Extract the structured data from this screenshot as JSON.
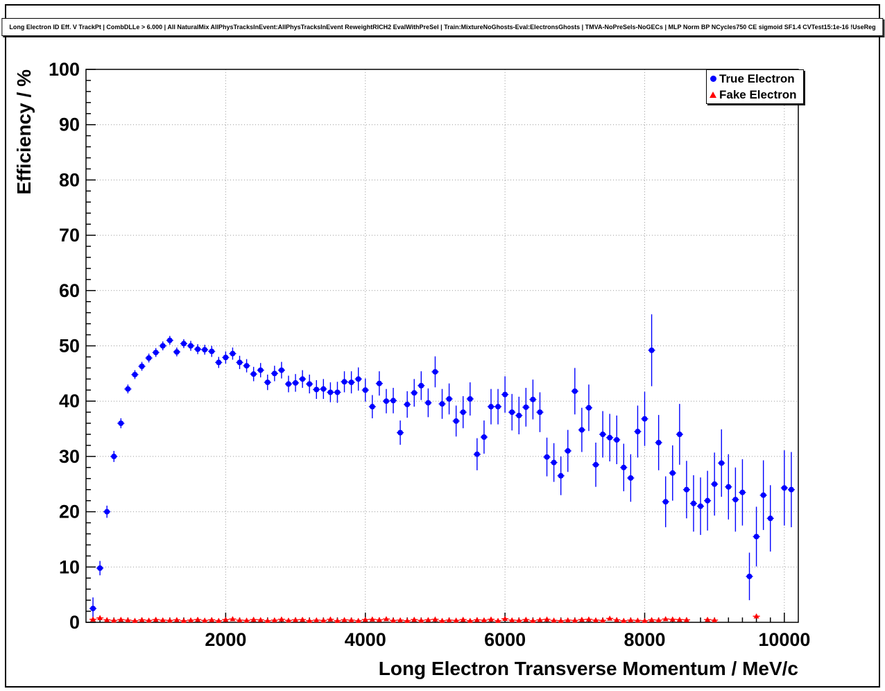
{
  "chart_data": {
    "type": "scatter",
    "title": "Long Electron ID Eff. V TrackPt | CombDLLe > 6.000 | All NaturalMix AllPhysTracksInEvent:AllPhysTracksInEvent ReweightRICH2 EvalWithPreSel | Train:MixtureNoGhosts-Eval:ElectronsGhosts | TMVA-NoPreSels-NoGECs | MLP Norm BP NCycles750 CE sigmoid SF1.4 CVTest15:1e-16 !UseReg",
    "xlabel": "Long Electron Transverse Momentum / MeV/c",
    "ylabel": "Efficiency / %",
    "xlim": [
      0,
      10200
    ],
    "ylim": [
      0,
      100
    ],
    "xticks": [
      2000,
      4000,
      6000,
      8000,
      10000
    ],
    "yticks": [
      0,
      10,
      20,
      30,
      40,
      50,
      60,
      70,
      80,
      90,
      100
    ],
    "x_minor_step": 200,
    "y_minor_step": 2,
    "grid": true,
    "grid_color": "#999999",
    "axis_color": "#000000",
    "legend_position": "top-right",
    "series": [
      {
        "name": "True Electron",
        "color": "#0000ff",
        "marker": "circle",
        "xerr": 50,
        "points": [
          [
            100,
            2.5,
            2.0
          ],
          [
            200,
            9.8,
            1.3
          ],
          [
            300,
            20.0,
            1.1
          ],
          [
            400,
            30.0,
            1.0
          ],
          [
            500,
            36.0,
            0.9
          ],
          [
            600,
            42.2,
            0.8
          ],
          [
            700,
            44.8,
            0.8
          ],
          [
            800,
            46.3,
            0.8
          ],
          [
            900,
            47.8,
            0.8
          ],
          [
            1000,
            48.8,
            0.8
          ],
          [
            1100,
            50.0,
            0.8
          ],
          [
            1200,
            51.0,
            0.8
          ],
          [
            1300,
            48.9,
            0.8
          ],
          [
            1400,
            50.4,
            0.8
          ],
          [
            1500,
            50.0,
            0.9
          ],
          [
            1600,
            49.4,
            0.9
          ],
          [
            1700,
            49.3,
            0.9
          ],
          [
            1800,
            49.0,
            1.0
          ],
          [
            1900,
            47.0,
            1.0
          ],
          [
            2000,
            47.9,
            1.1
          ],
          [
            2100,
            48.6,
            1.1
          ],
          [
            2200,
            47.0,
            1.2
          ],
          [
            2300,
            46.4,
            1.2
          ],
          [
            2400,
            44.9,
            1.3
          ],
          [
            2500,
            45.6,
            1.3
          ],
          [
            2600,
            43.4,
            1.4
          ],
          [
            2700,
            45.0,
            1.4
          ],
          [
            2800,
            45.6,
            1.5
          ],
          [
            2900,
            43.1,
            1.5
          ],
          [
            3000,
            43.3,
            1.6
          ],
          [
            3100,
            44.0,
            1.6
          ],
          [
            3200,
            43.1,
            1.7
          ],
          [
            3300,
            42.1,
            1.7
          ],
          [
            3400,
            42.2,
            1.8
          ],
          [
            3500,
            41.6,
            1.8
          ],
          [
            3600,
            41.6,
            1.9
          ],
          [
            3700,
            43.5,
            1.9
          ],
          [
            3800,
            43.4,
            2.0
          ],
          [
            3900,
            44.0,
            2.1
          ],
          [
            4000,
            42.0,
            2.1
          ],
          [
            4100,
            39.0,
            2.1
          ],
          [
            4200,
            43.2,
            2.2
          ],
          [
            4300,
            40.0,
            2.2
          ],
          [
            4400,
            40.1,
            2.3
          ],
          [
            4500,
            34.3,
            2.2
          ],
          [
            4600,
            39.4,
            2.4
          ],
          [
            4700,
            41.5,
            2.5
          ],
          [
            4800,
            42.8,
            2.6
          ],
          [
            4900,
            39.7,
            2.6
          ],
          [
            5000,
            45.3,
            2.8
          ],
          [
            5100,
            39.5,
            2.7
          ],
          [
            5200,
            40.4,
            2.8
          ],
          [
            5300,
            36.4,
            2.8
          ],
          [
            5400,
            38.0,
            2.9
          ],
          [
            5500,
            40.4,
            3.0
          ],
          [
            5600,
            30.4,
            2.9
          ],
          [
            5700,
            33.5,
            3.0
          ],
          [
            5800,
            39.0,
            3.2
          ],
          [
            5900,
            39.0,
            3.2
          ],
          [
            6000,
            41.2,
            3.3
          ],
          [
            6100,
            38.0,
            3.3
          ],
          [
            6200,
            37.4,
            3.4
          ],
          [
            6300,
            38.9,
            3.5
          ],
          [
            6400,
            40.3,
            3.6
          ],
          [
            6500,
            38.0,
            3.6
          ],
          [
            6600,
            29.9,
            3.5
          ],
          [
            6700,
            28.9,
            3.5
          ],
          [
            6800,
            26.5,
            3.5
          ],
          [
            6900,
            31.0,
            3.8
          ],
          [
            7000,
            41.8,
            4.2
          ],
          [
            7100,
            34.8,
            4.0
          ],
          [
            7200,
            38.8,
            4.2
          ],
          [
            7300,
            28.5,
            4.0
          ],
          [
            7400,
            34.0,
            4.2
          ],
          [
            7500,
            33.4,
            4.3
          ],
          [
            7600,
            33.0,
            4.4
          ],
          [
            7700,
            28.0,
            4.3
          ],
          [
            7800,
            26.1,
            4.3
          ],
          [
            7900,
            34.5,
            4.7
          ],
          [
            8000,
            36.8,
            4.9
          ],
          [
            8100,
            49.2,
            6.5
          ],
          [
            8200,
            32.5,
            5.0
          ],
          [
            8300,
            21.8,
            4.6
          ],
          [
            8400,
            27.0,
            5.0
          ],
          [
            8500,
            34.0,
            5.5
          ],
          [
            8600,
            24.0,
            5.2
          ],
          [
            8700,
            21.5,
            5.1
          ],
          [
            8800,
            21.0,
            5.2
          ],
          [
            8900,
            22.0,
            5.4
          ],
          [
            9000,
            25.0,
            5.7
          ],
          [
            9100,
            28.8,
            6.1
          ],
          [
            9200,
            24.5,
            5.9
          ],
          [
            9300,
            22.2,
            5.8
          ],
          [
            9400,
            23.5,
            6.0
          ],
          [
            9500,
            8.3,
            4.3
          ],
          [
            9600,
            15.5,
            5.4
          ],
          [
            9700,
            23.0,
            6.3
          ],
          [
            9800,
            18.8,
            6.0
          ],
          [
            10000,
            24.3,
            6.8
          ],
          [
            10100,
            24.0,
            6.8
          ]
        ]
      },
      {
        "name": "Fake Electron",
        "color": "#ff0000",
        "marker": "triangle",
        "xerr": 50,
        "yerr": 0.2,
        "points": [
          [
            100,
            0.55
          ],
          [
            200,
            0.8
          ],
          [
            300,
            0.45
          ],
          [
            400,
            0.35
          ],
          [
            500,
            0.5
          ],
          [
            600,
            0.4
          ],
          [
            700,
            0.3
          ],
          [
            800,
            0.45
          ],
          [
            900,
            0.35
          ],
          [
            1000,
            0.5
          ],
          [
            1100,
            0.4
          ],
          [
            1200,
            0.35
          ],
          [
            1300,
            0.45
          ],
          [
            1400,
            0.3
          ],
          [
            1500,
            0.4
          ],
          [
            1600,
            0.5
          ],
          [
            1700,
            0.35
          ],
          [
            1800,
            0.45
          ],
          [
            1900,
            0.3
          ],
          [
            2000,
            0.5
          ],
          [
            2100,
            0.6
          ],
          [
            2200,
            0.4
          ],
          [
            2300,
            0.35
          ],
          [
            2400,
            0.5
          ],
          [
            2500,
            0.45
          ],
          [
            2600,
            0.3
          ],
          [
            2700,
            0.4
          ],
          [
            2800,
            0.55
          ],
          [
            2900,
            0.35
          ],
          [
            3000,
            0.45
          ],
          [
            3100,
            0.5
          ],
          [
            3200,
            0.3
          ],
          [
            3300,
            0.4
          ],
          [
            3400,
            0.35
          ],
          [
            3500,
            0.55
          ],
          [
            3600,
            0.3
          ],
          [
            3700,
            0.45
          ],
          [
            3800,
            0.4
          ],
          [
            3900,
            0.3
          ],
          [
            4000,
            0.5
          ],
          [
            4100,
            0.55
          ],
          [
            4200,
            0.45
          ],
          [
            4300,
            0.6
          ],
          [
            4400,
            0.35
          ],
          [
            4500,
            0.4
          ],
          [
            4600,
            0.3
          ],
          [
            4700,
            0.5
          ],
          [
            4800,
            0.35
          ],
          [
            4900,
            0.45
          ],
          [
            5000,
            0.55
          ],
          [
            5100,
            0.3
          ],
          [
            5200,
            0.4
          ],
          [
            5300,
            0.35
          ],
          [
            5400,
            0.5
          ],
          [
            5500,
            0.3
          ],
          [
            5600,
            0.45
          ],
          [
            5700,
            0.4
          ],
          [
            5800,
            0.55
          ],
          [
            5900,
            0.3
          ],
          [
            6000,
            0.65
          ],
          [
            6100,
            0.4
          ],
          [
            6200,
            0.35
          ],
          [
            6300,
            0.5
          ],
          [
            6400,
            0.3
          ],
          [
            6500,
            0.45
          ],
          [
            6600,
            0.55
          ],
          [
            6700,
            0.35
          ],
          [
            6800,
            0.3
          ],
          [
            6900,
            0.4
          ],
          [
            7000,
            0.35
          ],
          [
            7100,
            0.5
          ],
          [
            7200,
            0.55
          ],
          [
            7300,
            0.4
          ],
          [
            7400,
            0.35
          ],
          [
            7500,
            0.7
          ],
          [
            7600,
            0.45
          ],
          [
            7700,
            0.3
          ],
          [
            7800,
            0.4
          ],
          [
            7900,
            0.35
          ],
          [
            8000,
            0.3
          ],
          [
            8100,
            0.45
          ],
          [
            8200,
            0.4
          ],
          [
            8300,
            0.6
          ],
          [
            8400,
            0.55
          ],
          [
            8500,
            0.5
          ],
          [
            8600,
            0.45
          ],
          [
            8900,
            0.5
          ],
          [
            9000,
            0.4
          ],
          [
            9600,
            1.1
          ]
        ]
      }
    ]
  }
}
